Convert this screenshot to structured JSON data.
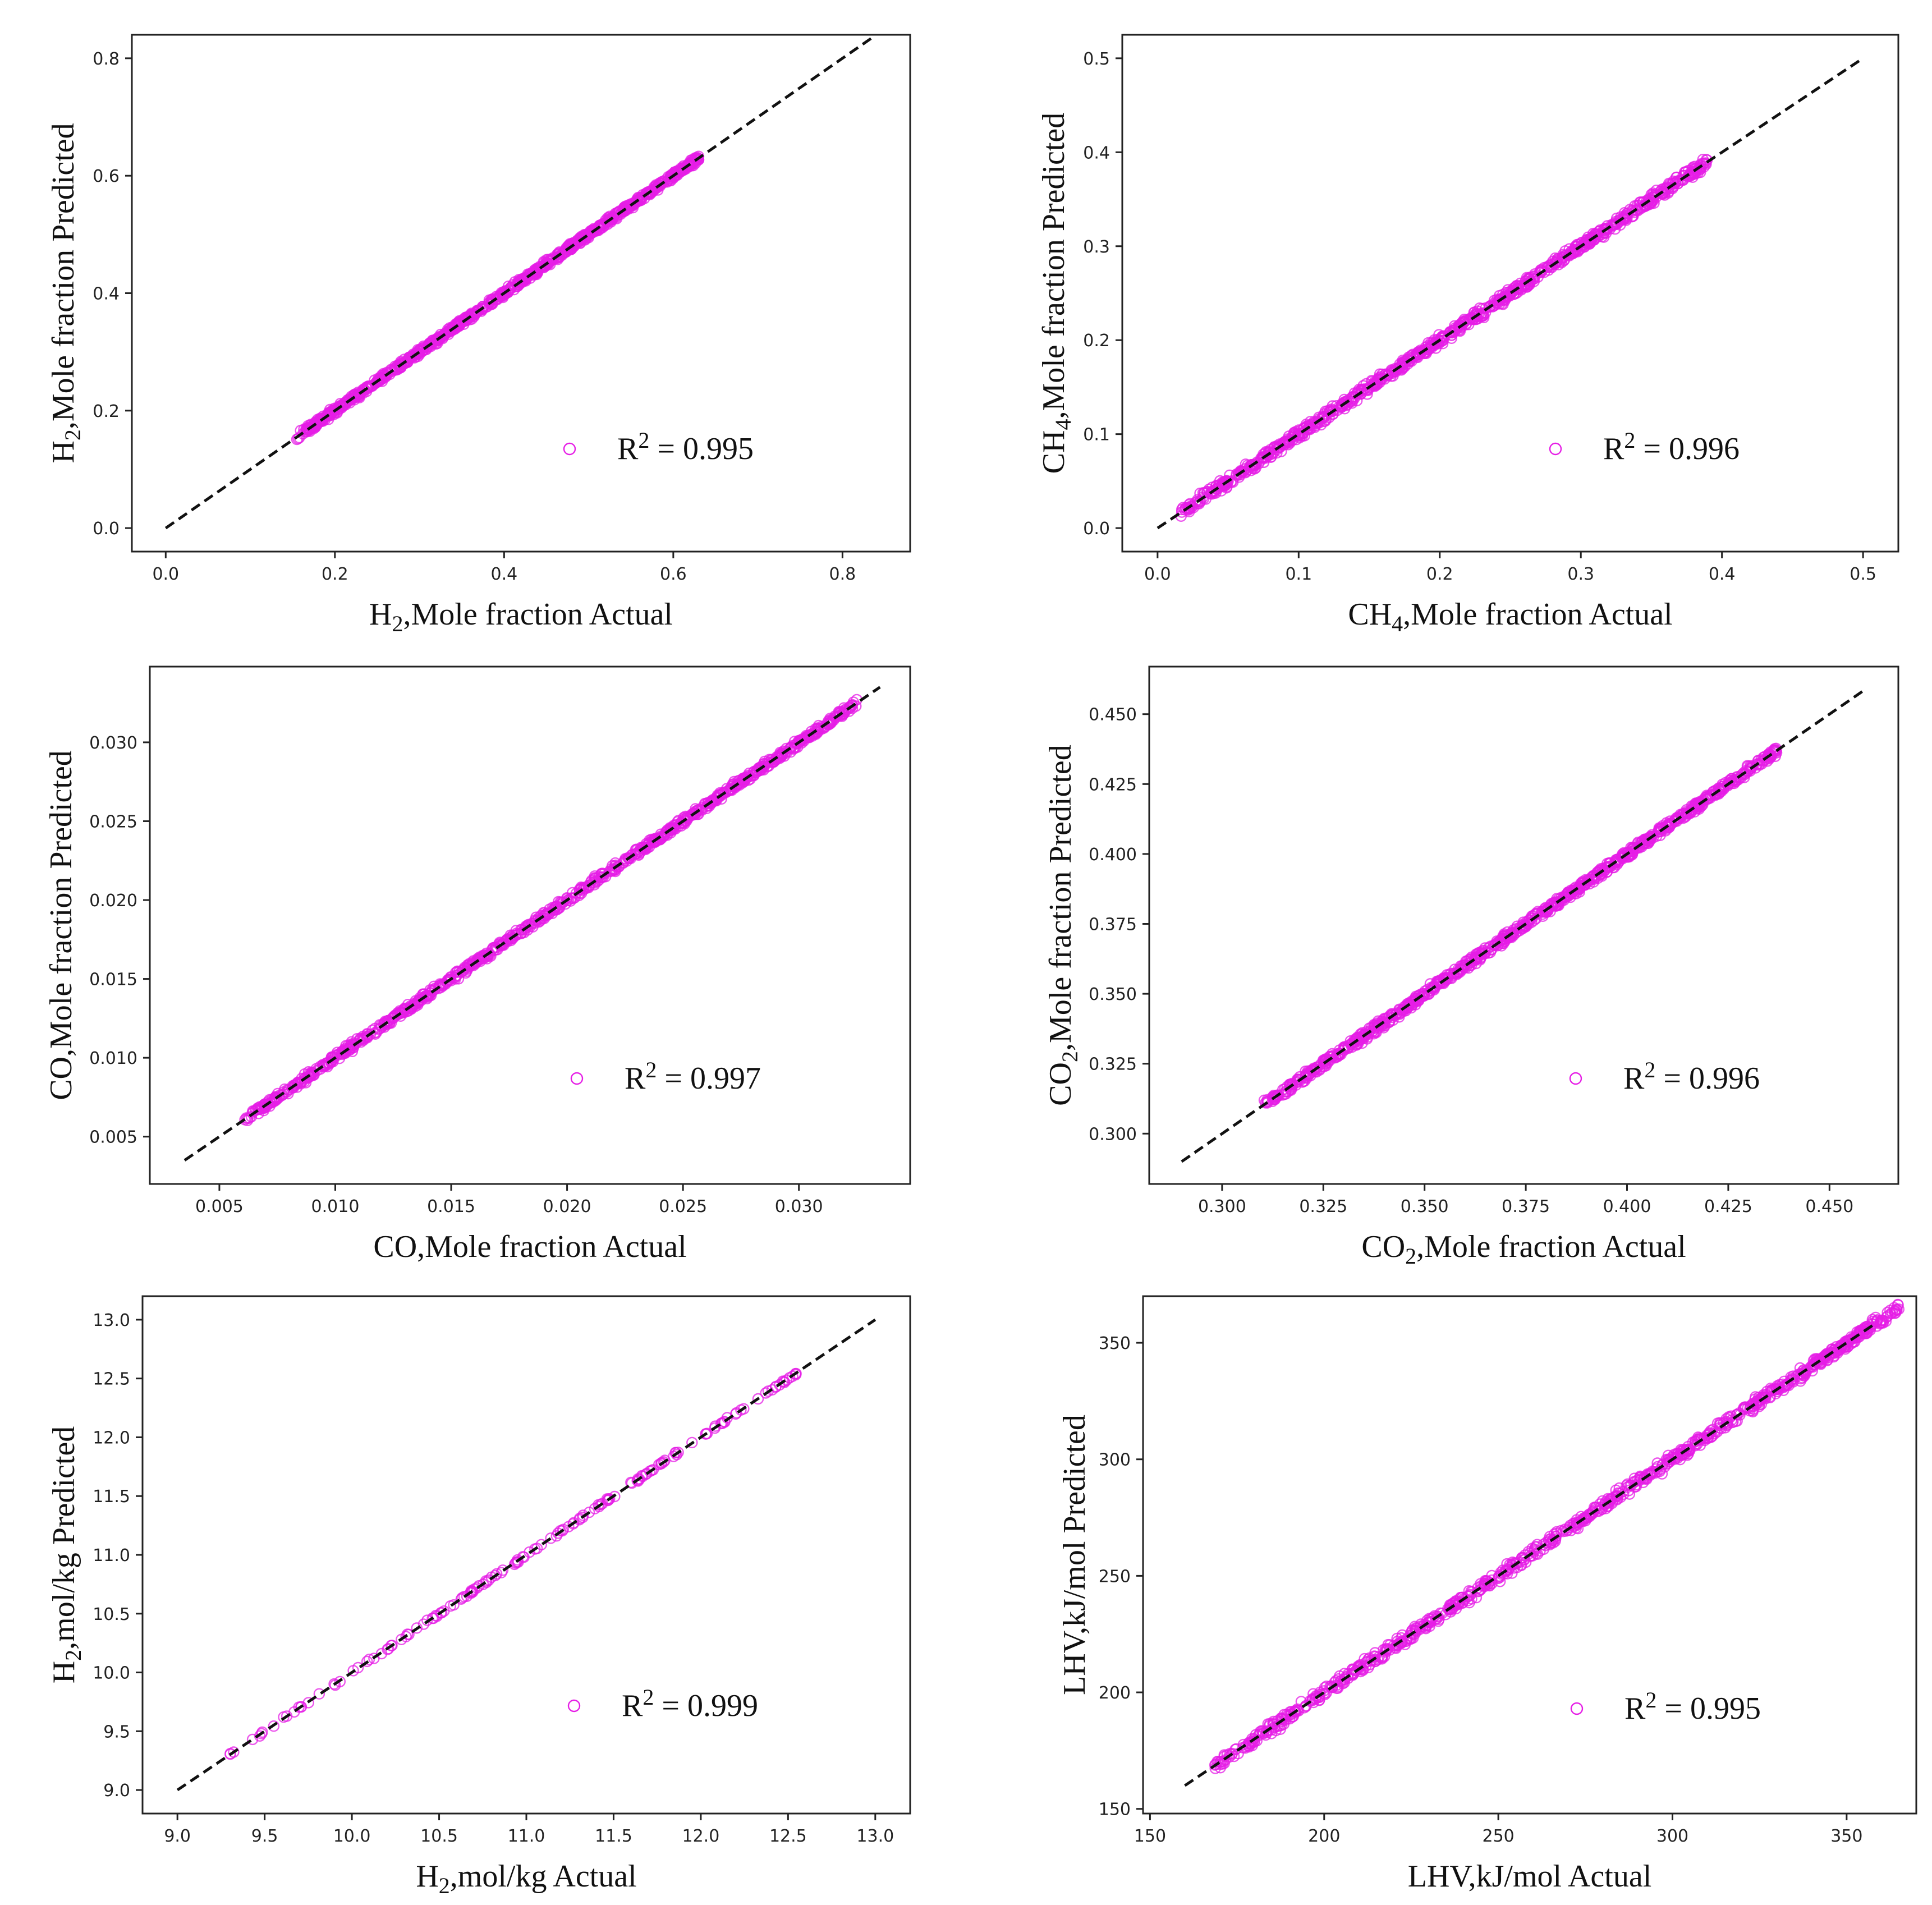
{
  "colors": {
    "marker": "#e61ee6",
    "line": "#111111",
    "axis": "#222222"
  },
  "chart_data": [
    {
      "type": "scatter",
      "id": "h2-frac",
      "xlabel": {
        "main": "H",
        "sub": "2",
        "rest": ",Mole fraction Actual"
      },
      "ylabel": {
        "main": "H",
        "sub": "2",
        "rest": ",Mole fraction Predicted"
      },
      "xlim": [
        -0.04,
        0.88
      ],
      "ylim": [
        -0.04,
        0.84
      ],
      "xticks": [
        0.0,
        0.2,
        0.4,
        0.6,
        0.8
      ],
      "xtick_labels": [
        "0.0",
        "0.2",
        "0.4",
        "0.6",
        "0.8"
      ],
      "yticks": [
        0.0,
        0.2,
        0.4,
        0.6,
        0.8
      ],
      "ytick_labels": [
        "0.0",
        "0.2",
        "0.4",
        "0.6",
        "0.8"
      ],
      "ref_line": [
        0.0,
        0.835
      ],
      "data_range": [
        0.155,
        0.63
      ],
      "noise": 0.005,
      "n_points": 900,
      "seed": 11,
      "legend": {
        "marker": "o",
        "label_main": "R",
        "label_sup": "2",
        "label_rest": " = 0.995"
      }
    },
    {
      "type": "scatter",
      "id": "ch4-frac",
      "xlabel": {
        "main": "CH",
        "sub": "4",
        "rest": ",Mole fraction Actual"
      },
      "ylabel": {
        "main": "CH",
        "sub": "4",
        "rest": ",Mole fraction Predicted"
      },
      "xlim": [
        -0.025,
        0.525
      ],
      "ylim": [
        -0.025,
        0.525
      ],
      "xticks": [
        0.0,
        0.1,
        0.2,
        0.3,
        0.4,
        0.5
      ],
      "xtick_labels": [
        "0.0",
        "0.1",
        "0.2",
        "0.3",
        "0.4",
        "0.5"
      ],
      "yticks": [
        0.0,
        0.1,
        0.2,
        0.3,
        0.4,
        0.5
      ],
      "ytick_labels": [
        "0.0",
        "0.1",
        "0.2",
        "0.3",
        "0.4",
        "0.5"
      ],
      "ref_line": [
        0.0,
        0.5
      ],
      "data_range": [
        0.015,
        0.39
      ],
      "noise": 0.005,
      "n_points": 900,
      "seed": 23,
      "legend": {
        "marker": "o",
        "label_main": "R",
        "label_sup": "2",
        "label_rest": " = 0.996"
      }
    },
    {
      "type": "scatter",
      "id": "co-frac",
      "xlabel": {
        "main": "CO",
        "sub": "",
        "rest": ",Mole fraction Actual"
      },
      "ylabel": {
        "main": "CO",
        "sub": "",
        "rest": ",Mole fraction Predicted"
      },
      "xlim": [
        0.002,
        0.0348
      ],
      "ylim": [
        0.002,
        0.0348
      ],
      "xticks": [
        0.005,
        0.01,
        0.015,
        0.02,
        0.025,
        0.03
      ],
      "xtick_labels": [
        "0.005",
        "0.010",
        "0.015",
        "0.020",
        "0.025",
        "0.030"
      ],
      "yticks": [
        0.005,
        0.01,
        0.015,
        0.02,
        0.025,
        0.03
      ],
      "ytick_labels": [
        "0.005",
        "0.010",
        "0.015",
        "0.020",
        "0.025",
        "0.030"
      ],
      "ref_line": [
        0.0035,
        0.0335
      ],
      "data_range": [
        0.006,
        0.0325
      ],
      "noise": 0.00022,
      "n_points": 900,
      "seed": 37,
      "legend": {
        "marker": "o",
        "label_main": "R",
        "label_sup": "2",
        "label_rest": " = 0.997"
      }
    },
    {
      "type": "scatter",
      "id": "co2-frac",
      "xlabel": {
        "main": "CO",
        "sub": "2",
        "rest": ",Mole fraction Actual"
      },
      "ylabel": {
        "main": "CO",
        "sub": "2",
        "rest": ",Mole fraction Predicted"
      },
      "xlim": [
        0.282,
        0.467
      ],
      "ylim": [
        0.282,
        0.467
      ],
      "xticks": [
        0.3,
        0.325,
        0.35,
        0.375,
        0.4,
        0.425,
        0.45
      ],
      "xtick_labels": [
        "0.300",
        "0.325",
        "0.350",
        "0.375",
        "0.400",
        "0.425",
        "0.450"
      ],
      "yticks": [
        0.3,
        0.325,
        0.35,
        0.375,
        0.4,
        0.425,
        0.45
      ],
      "ytick_labels": [
        "0.300",
        "0.325",
        "0.350",
        "0.375",
        "0.400",
        "0.425",
        "0.450"
      ],
      "ref_line": [
        0.29,
        0.459
      ],
      "data_range": [
        0.31,
        0.437
      ],
      "noise": 0.0015,
      "n_points": 900,
      "seed": 53,
      "legend": {
        "marker": "o",
        "label_main": "R",
        "label_sup": "2",
        "label_rest": " = 0.996"
      }
    },
    {
      "type": "scatter",
      "id": "h2-molkg",
      "xlabel": {
        "main": "H",
        "sub": "2",
        "rest": ",mol/kg Actual"
      },
      "ylabel": {
        "main": "H",
        "sub": "2",
        "rest": ",mol/kg Predicted"
      },
      "xlim": [
        8.8,
        13.2
      ],
      "ylim": [
        8.8,
        13.2
      ],
      "xticks": [
        9.0,
        9.5,
        10.0,
        10.5,
        11.0,
        11.5,
        12.0,
        12.5,
        13.0
      ],
      "xtick_labels": [
        "9.0",
        "9.5",
        "10.0",
        "10.5",
        "11.0",
        "11.5",
        "12.0",
        "12.5",
        "13.0"
      ],
      "yticks": [
        9.0,
        9.5,
        10.0,
        10.5,
        11.0,
        11.5,
        12.0,
        12.5,
        13.0
      ],
      "ytick_labels": [
        "9.0",
        "9.5",
        "10.0",
        "10.5",
        "11.0",
        "11.5",
        "12.0",
        "12.5",
        "13.0"
      ],
      "ref_line": [
        9.0,
        13.0
      ],
      "data_range": [
        9.3,
        12.6
      ],
      "noise": 0.012,
      "n_points": 160,
      "seed": 71,
      "legend": {
        "marker": "o",
        "label_main": "R",
        "label_sup": "2",
        "label_rest": " = 0.999"
      }
    },
    {
      "type": "scatter",
      "id": "lhv",
      "xlabel": {
        "main": "LHV,kJ/mol Actual",
        "sub": "",
        "rest": ""
      },
      "ylabel": {
        "main": "LHV,kJ/mol Predicted",
        "sub": "",
        "rest": ""
      },
      "xlim": [
        148,
        370
      ],
      "ylim": [
        148,
        370
      ],
      "xticks": [
        150,
        200,
        250,
        300,
        350
      ],
      "xtick_labels": [
        "150",
        "200",
        "250",
        "300",
        "350"
      ],
      "yticks": [
        150,
        200,
        250,
        300,
        350
      ],
      "ytick_labels": [
        "150",
        "200",
        "250",
        "300",
        "350"
      ],
      "ref_line": [
        160,
        358
      ],
      "data_range": [
        168,
        365
      ],
      "noise": 2.2,
      "n_points": 900,
      "seed": 97,
      "legend": {
        "marker": "o",
        "label_main": "R",
        "label_sup": "2",
        "label_rest": " = 0.995"
      }
    }
  ]
}
